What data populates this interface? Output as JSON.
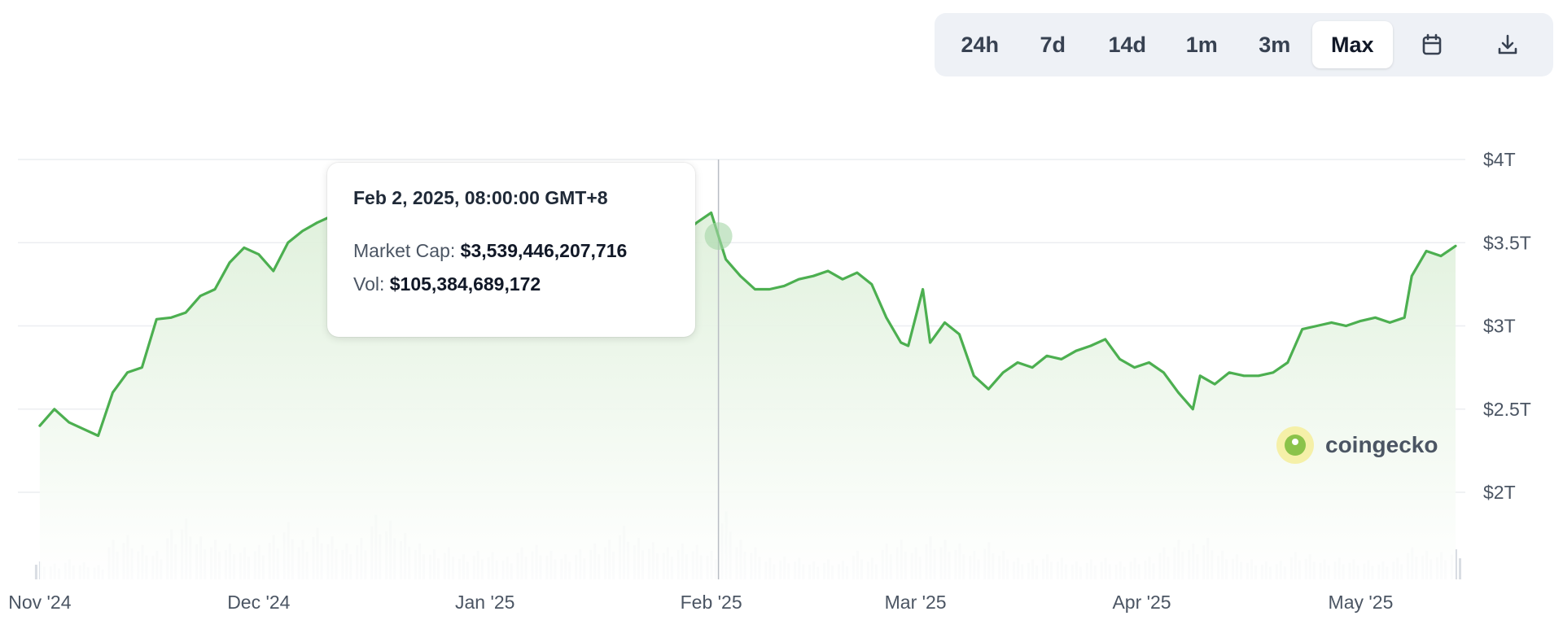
{
  "toolbar": {
    "ranges": [
      "24h",
      "7d",
      "14d",
      "1m",
      "3m",
      "Max"
    ],
    "active_range": "Max",
    "calendar_icon": "calendar-icon",
    "download_icon": "download-icon"
  },
  "tooltip": {
    "date": "Feb 2, 2025, 08:00:00 GMT+8",
    "market_cap_label": "Market Cap:",
    "market_cap_value": "$3,539,446,207,716",
    "vol_label": "Vol:",
    "vol_value": "$105,384,689,172"
  },
  "brand": {
    "name": "coingecko",
    "logo_icon": "coingecko-logo-icon"
  },
  "colors": {
    "line": "#4caf50",
    "area_top": "#dcefd8",
    "volume": "#d9dde3",
    "grid": "#eceef1"
  },
  "chart_data": {
    "type": "area",
    "title": "",
    "xlabel": "",
    "ylabel": "",
    "x_tick_labels": [
      "Nov '24",
      "Dec '24",
      "Jan '25",
      "Feb '25",
      "Mar '25",
      "Apr '25",
      "May '25"
    ],
    "y_tick_labels": [
      "$4T",
      "$3.5T",
      "$3T",
      "$2.5T",
      "$2T"
    ],
    "ylim": [
      2.0,
      4.0
    ],
    "y_unit": "trillion USD",
    "grid": true,
    "highlight_date": "2025-02-02",
    "series": [
      {
        "label": "Market Cap",
        "points": [
          [
            "2024-11-01",
            2.4
          ],
          [
            "2024-11-03",
            2.5
          ],
          [
            "2024-11-05",
            2.42
          ],
          [
            "2024-11-07",
            2.38
          ],
          [
            "2024-11-09",
            2.34
          ],
          [
            "2024-11-11",
            2.6
          ],
          [
            "2024-11-13",
            2.72
          ],
          [
            "2024-11-15",
            2.75
          ],
          [
            "2024-11-17",
            3.04
          ],
          [
            "2024-11-19",
            3.05
          ],
          [
            "2024-11-21",
            3.08
          ],
          [
            "2024-11-23",
            3.18
          ],
          [
            "2024-11-25",
            3.22
          ],
          [
            "2024-11-27",
            3.38
          ],
          [
            "2024-11-29",
            3.47
          ],
          [
            "2024-12-01",
            3.43
          ],
          [
            "2024-12-03",
            3.33
          ],
          [
            "2024-12-05",
            3.5
          ],
          [
            "2024-12-07",
            3.57
          ],
          [
            "2024-12-09",
            3.62
          ],
          [
            "2024-12-11",
            3.66
          ],
          [
            "2024-12-13",
            3.72
          ],
          [
            "2024-12-15",
            3.8
          ],
          [
            "2024-12-17",
            3.85
          ],
          [
            "2024-12-19",
            3.6
          ],
          [
            "2024-12-21",
            3.45
          ],
          [
            "2024-12-23",
            3.38
          ],
          [
            "2024-12-25",
            3.42
          ],
          [
            "2024-12-27",
            3.35
          ],
          [
            "2024-12-29",
            3.3
          ],
          [
            "2024-12-31",
            3.25
          ],
          [
            "2025-01-02",
            3.35
          ],
          [
            "2025-01-04",
            3.38
          ],
          [
            "2025-01-06",
            3.45
          ],
          [
            "2025-01-08",
            3.3
          ],
          [
            "2025-01-10",
            3.28
          ],
          [
            "2025-01-12",
            3.3
          ],
          [
            "2025-01-14",
            3.4
          ],
          [
            "2025-01-16",
            3.5
          ],
          [
            "2025-01-18",
            3.6
          ],
          [
            "2025-01-20",
            3.7
          ],
          [
            "2025-01-22",
            3.62
          ],
          [
            "2025-01-24",
            3.65
          ],
          [
            "2025-01-26",
            3.6
          ],
          [
            "2025-01-28",
            3.55
          ],
          [
            "2025-01-30",
            3.62
          ],
          [
            "2025-02-01",
            3.68
          ],
          [
            "2025-02-02",
            3.54
          ],
          [
            "2025-02-03",
            3.4
          ],
          [
            "2025-02-05",
            3.3
          ],
          [
            "2025-02-07",
            3.22
          ],
          [
            "2025-02-09",
            3.22
          ],
          [
            "2025-02-11",
            3.24
          ],
          [
            "2025-02-13",
            3.28
          ],
          [
            "2025-02-15",
            3.3
          ],
          [
            "2025-02-17",
            3.33
          ],
          [
            "2025-02-19",
            3.28
          ],
          [
            "2025-02-21",
            3.32
          ],
          [
            "2025-02-23",
            3.25
          ],
          [
            "2025-02-25",
            3.05
          ],
          [
            "2025-02-27",
            2.9
          ],
          [
            "2025-02-28",
            2.88
          ],
          [
            "2025-03-02",
            3.22
          ],
          [
            "2025-03-03",
            2.9
          ],
          [
            "2025-03-05",
            3.02
          ],
          [
            "2025-03-07",
            2.95
          ],
          [
            "2025-03-09",
            2.7
          ],
          [
            "2025-03-11",
            2.62
          ],
          [
            "2025-03-13",
            2.72
          ],
          [
            "2025-03-15",
            2.78
          ],
          [
            "2025-03-17",
            2.75
          ],
          [
            "2025-03-19",
            2.82
          ],
          [
            "2025-03-21",
            2.8
          ],
          [
            "2025-03-23",
            2.85
          ],
          [
            "2025-03-25",
            2.88
          ],
          [
            "2025-03-27",
            2.92
          ],
          [
            "2025-03-29",
            2.8
          ],
          [
            "2025-03-31",
            2.75
          ],
          [
            "2025-04-02",
            2.78
          ],
          [
            "2025-04-04",
            2.72
          ],
          [
            "2025-04-06",
            2.6
          ],
          [
            "2025-04-08",
            2.5
          ],
          [
            "2025-04-09",
            2.7
          ],
          [
            "2025-04-11",
            2.65
          ],
          [
            "2025-04-13",
            2.72
          ],
          [
            "2025-04-15",
            2.7
          ],
          [
            "2025-04-17",
            2.7
          ],
          [
            "2025-04-19",
            2.72
          ],
          [
            "2025-04-21",
            2.78
          ],
          [
            "2025-04-23",
            2.98
          ],
          [
            "2025-04-25",
            3.0
          ],
          [
            "2025-04-27",
            3.02
          ],
          [
            "2025-04-29",
            3.0
          ],
          [
            "2025-05-01",
            3.03
          ],
          [
            "2025-05-03",
            3.05
          ],
          [
            "2025-05-05",
            3.02
          ],
          [
            "2025-05-07",
            3.05
          ],
          [
            "2025-05-08",
            3.3
          ],
          [
            "2025-05-10",
            3.45
          ],
          [
            "2025-05-12",
            3.42
          ],
          [
            "2025-05-14",
            3.48
          ]
        ]
      },
      {
        "label": "Vol",
        "unit": "relative",
        "points": [
          [
            "2024-11-01",
            0.25
          ],
          [
            "2024-11-03",
            0.22
          ],
          [
            "2024-11-05",
            0.28
          ],
          [
            "2024-11-07",
            0.24
          ],
          [
            "2024-11-09",
            0.2
          ],
          [
            "2024-11-11",
            0.55
          ],
          [
            "2024-11-13",
            0.62
          ],
          [
            "2024-11-15",
            0.48
          ],
          [
            "2024-11-17",
            0.4
          ],
          [
            "2024-11-19",
            0.7
          ],
          [
            "2024-11-21",
            0.85
          ],
          [
            "2024-11-23",
            0.6
          ],
          [
            "2024-11-25",
            0.55
          ],
          [
            "2024-11-27",
            0.5
          ],
          [
            "2024-11-29",
            0.45
          ],
          [
            "2024-12-01",
            0.48
          ],
          [
            "2024-12-03",
            0.62
          ],
          [
            "2024-12-05",
            0.8
          ],
          [
            "2024-12-07",
            0.55
          ],
          [
            "2024-12-09",
            0.72
          ],
          [
            "2024-12-11",
            0.6
          ],
          [
            "2024-12-13",
            0.5
          ],
          [
            "2024-12-15",
            0.58
          ],
          [
            "2024-12-17",
            0.9
          ],
          [
            "2024-12-19",
            0.82
          ],
          [
            "2024-12-21",
            0.65
          ],
          [
            "2024-12-23",
            0.5
          ],
          [
            "2024-12-25",
            0.42
          ],
          [
            "2024-12-27",
            0.45
          ],
          [
            "2024-12-29",
            0.35
          ],
          [
            "2024-12-31",
            0.4
          ],
          [
            "2025-01-02",
            0.38
          ],
          [
            "2025-01-04",
            0.32
          ],
          [
            "2025-01-06",
            0.45
          ],
          [
            "2025-01-08",
            0.48
          ],
          [
            "2025-01-10",
            0.4
          ],
          [
            "2025-01-12",
            0.35
          ],
          [
            "2025-01-14",
            0.42
          ],
          [
            "2025-01-16",
            0.5
          ],
          [
            "2025-01-18",
            0.55
          ],
          [
            "2025-01-20",
            0.75
          ],
          [
            "2025-01-22",
            0.58
          ],
          [
            "2025-01-24",
            0.52
          ],
          [
            "2025-01-26",
            0.45
          ],
          [
            "2025-01-28",
            0.5
          ],
          [
            "2025-01-30",
            0.48
          ],
          [
            "2025-02-01",
            0.4
          ],
          [
            "2025-02-03",
            0.95
          ],
          [
            "2025-02-05",
            0.55
          ],
          [
            "2025-02-07",
            0.45
          ],
          [
            "2025-02-09",
            0.3
          ],
          [
            "2025-02-11",
            0.32
          ],
          [
            "2025-02-13",
            0.3
          ],
          [
            "2025-02-15",
            0.25
          ],
          [
            "2025-02-17",
            0.28
          ],
          [
            "2025-02-19",
            0.26
          ],
          [
            "2025-02-21",
            0.4
          ],
          [
            "2025-02-23",
            0.3
          ],
          [
            "2025-02-25",
            0.5
          ],
          [
            "2025-02-27",
            0.55
          ],
          [
            "2025-03-01",
            0.45
          ],
          [
            "2025-03-03",
            0.6
          ],
          [
            "2025-03-05",
            0.55
          ],
          [
            "2025-03-07",
            0.5
          ],
          [
            "2025-03-09",
            0.4
          ],
          [
            "2025-03-11",
            0.52
          ],
          [
            "2025-03-13",
            0.4
          ],
          [
            "2025-03-15",
            0.3
          ],
          [
            "2025-03-17",
            0.28
          ],
          [
            "2025-03-19",
            0.35
          ],
          [
            "2025-03-21",
            0.3
          ],
          [
            "2025-03-23",
            0.25
          ],
          [
            "2025-03-25",
            0.28
          ],
          [
            "2025-03-27",
            0.3
          ],
          [
            "2025-03-29",
            0.25
          ],
          [
            "2025-03-31",
            0.3
          ],
          [
            "2025-04-02",
            0.32
          ],
          [
            "2025-04-04",
            0.45
          ],
          [
            "2025-04-06",
            0.55
          ],
          [
            "2025-04-08",
            0.5
          ],
          [
            "2025-04-10",
            0.58
          ],
          [
            "2025-04-12",
            0.4
          ],
          [
            "2025-04-14",
            0.35
          ],
          [
            "2025-04-16",
            0.28
          ],
          [
            "2025-04-18",
            0.25
          ],
          [
            "2025-04-20",
            0.26
          ],
          [
            "2025-04-22",
            0.38
          ],
          [
            "2025-04-24",
            0.35
          ],
          [
            "2025-04-26",
            0.28
          ],
          [
            "2025-04-28",
            0.3
          ],
          [
            "2025-04-30",
            0.28
          ],
          [
            "2025-05-02",
            0.27
          ],
          [
            "2025-05-04",
            0.25
          ],
          [
            "2025-05-06",
            0.3
          ],
          [
            "2025-05-08",
            0.45
          ],
          [
            "2025-05-10",
            0.4
          ],
          [
            "2025-05-12",
            0.38
          ],
          [
            "2025-05-14",
            0.42
          ]
        ]
      }
    ]
  }
}
